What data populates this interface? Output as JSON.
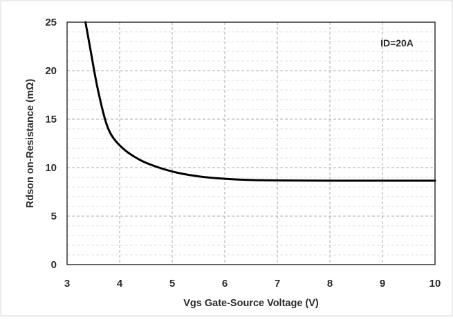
{
  "chart_data": {
    "type": "line",
    "xlabel": "Vgs Gate-Source Voltage (V)",
    "ylabel": "Rdson on-Resistance (mΩ)",
    "annotation": "ID=20A",
    "xlim": [
      3,
      10
    ],
    "ylim": [
      0,
      25
    ],
    "x_ticks": [
      "3",
      "4",
      "5",
      "6",
      "7",
      "8",
      "9",
      "10"
    ],
    "y_ticks": [
      "0",
      "5",
      "10",
      "15",
      "20",
      "25"
    ],
    "grid": true,
    "legend": "none",
    "colors": {
      "line": "#000000",
      "grid": "#aaaaaa",
      "frame": "#cfcfcf"
    },
    "series": [
      {
        "x": [
          3.35,
          3.45,
          3.55,
          3.65,
          3.75,
          3.85,
          4.0,
          4.2,
          4.5,
          5.0,
          5.5,
          6.0,
          6.5,
          7.0,
          8.0,
          9.0,
          10.0
        ],
        "y": [
          25.0,
          22.0,
          19.0,
          16.5,
          14.5,
          13.3,
          12.3,
          11.4,
          10.5,
          9.6,
          9.1,
          8.85,
          8.72,
          8.68,
          8.65,
          8.65,
          8.65
        ]
      }
    ]
  }
}
